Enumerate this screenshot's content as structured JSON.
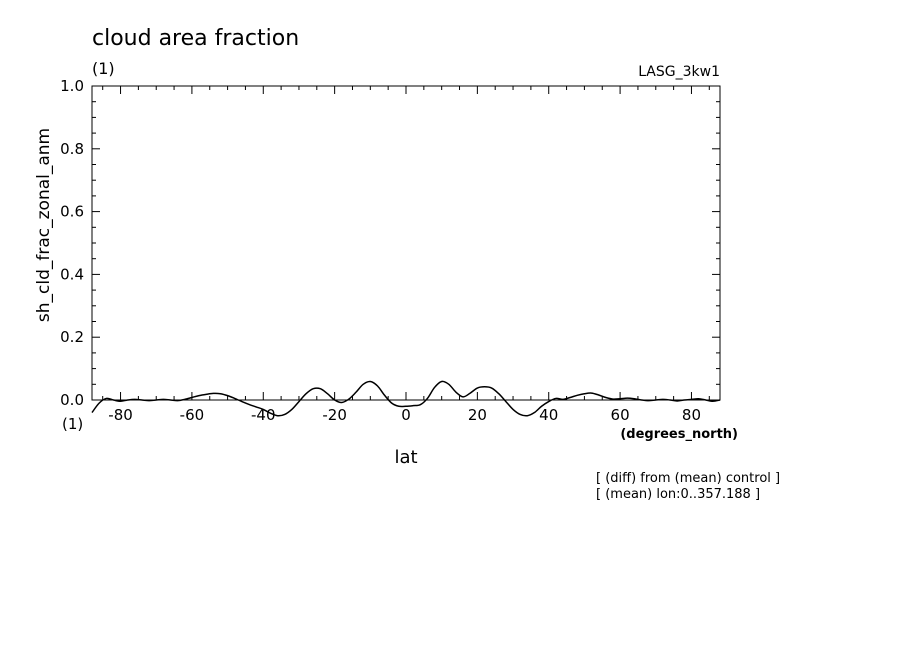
{
  "chart_data": {
    "type": "line",
    "title": "cloud area fraction",
    "units_label": "(1)",
    "model_label": "LASG_3kw1",
    "ylabel": "sh_cld_frac_zonal_anm",
    "xlabel": "lat",
    "xunits": "(degrees_north)",
    "x_offset_label": "(1)",
    "xlim": [
      -88,
      88
    ],
    "ylim": [
      0.0,
      1.0
    ],
    "xticks": [
      -80,
      -60,
      -40,
      -20,
      0,
      20,
      40,
      60,
      80
    ],
    "xtick_labels": [
      "-80",
      "-60",
      "-40",
      "-20",
      "0",
      "20",
      "40",
      "60",
      "80"
    ],
    "yticks": [
      0.0,
      0.2,
      0.4,
      0.6,
      0.8,
      1.0
    ],
    "ytick_labels": [
      "0.0",
      "0.2",
      "0.4",
      "0.6",
      "0.8",
      "1.0"
    ],
    "notes": [
      "[ (diff) from (mean) control ]",
      "[ (mean) lon:0..357.188 ]"
    ],
    "series": [
      {
        "x": [
          -88,
          -86,
          -84,
          -82,
          -80,
          -78,
          -76,
          -74,
          -72,
          -70,
          -68,
          -66,
          -64,
          -62,
          -60,
          -58,
          -56,
          -54,
          -52,
          -50,
          -48,
          -46,
          -44,
          -42,
          -40,
          -38,
          -36,
          -34,
          -32,
          -30,
          -28,
          -26,
          -24,
          -22,
          -20,
          -18,
          -16,
          -14,
          -12,
          -10,
          -8,
          -6,
          -4,
          -2,
          0,
          2,
          4,
          6,
          8,
          10,
          12,
          14,
          16,
          18,
          20,
          22,
          24,
          26,
          28,
          30,
          32,
          34,
          36,
          38,
          40,
          42,
          44,
          46,
          48,
          50,
          52,
          54,
          56,
          58,
          60,
          62,
          64,
          66,
          68,
          70,
          72,
          74,
          76,
          78,
          80,
          82,
          84,
          86,
          88
        ],
        "y": [
          -0.04,
          -0.01,
          0.005,
          0.0,
          -0.004,
          0.0,
          0.002,
          0.0,
          -0.002,
          0.0,
          0.002,
          0.0,
          -0.002,
          0.002,
          0.008,
          0.014,
          0.018,
          0.021,
          0.02,
          0.014,
          0.005,
          -0.005,
          -0.014,
          -0.022,
          -0.03,
          -0.042,
          -0.05,
          -0.046,
          -0.03,
          -0.005,
          0.02,
          0.036,
          0.036,
          0.02,
          0.0,
          -0.008,
          0.003,
          0.025,
          0.05,
          0.059,
          0.045,
          0.015,
          -0.01,
          -0.02,
          -0.02,
          -0.018,
          -0.015,
          0.005,
          0.04,
          0.059,
          0.05,
          0.025,
          0.01,
          0.022,
          0.038,
          0.042,
          0.038,
          0.02,
          -0.005,
          -0.03,
          -0.046,
          -0.05,
          -0.04,
          -0.02,
          -0.005,
          0.005,
          0.002,
          0.008,
          0.015,
          0.02,
          0.022,
          0.016,
          0.008,
          0.003,
          0.004,
          0.006,
          0.004,
          0.0,
          -0.002,
          0.0,
          0.002,
          0.0,
          -0.003,
          0.0,
          0.002,
          0.004,
          0.0,
          -0.004,
          0.0
        ]
      }
    ]
  }
}
